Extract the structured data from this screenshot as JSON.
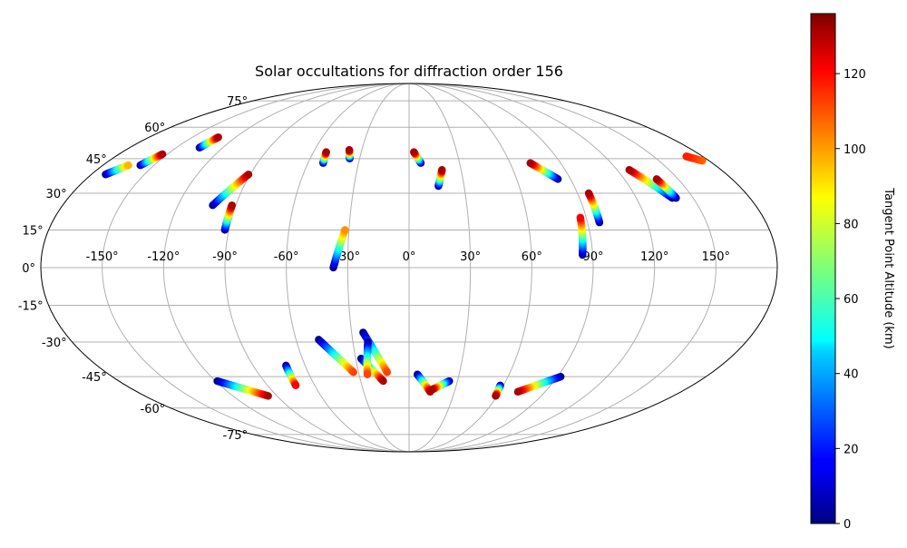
{
  "chart_data": {
    "type": "scatter",
    "projection": "mollweide",
    "title": "Solar occultations for diffraction order 156",
    "xlabel": "",
    "ylabel": "",
    "lon_ticks": [
      -150,
      -120,
      -90,
      -60,
      -30,
      0,
      30,
      60,
      90,
      120,
      150
    ],
    "lat_ticks": [
      -75,
      -60,
      -45,
      -30,
      -15,
      0,
      15,
      30,
      45,
      60,
      75
    ],
    "lon_tick_labels": [
      "-150°",
      "-120°",
      "-90°",
      "-60°",
      "-30°",
      "0°",
      "30°",
      "60°",
      "90°",
      "120°",
      "150°"
    ],
    "lat_tick_labels": [
      "-75°",
      "-60°",
      "-45°",
      "-30°",
      "-15°",
      "0°",
      "15°",
      "30°",
      "45°",
      "60°",
      "75°"
    ],
    "grid": true,
    "colormap": "jet",
    "colorbar": {
      "label": "Tangent Point Altitude (km)",
      "range": [
        0,
        136
      ],
      "ticks": [
        0,
        20,
        40,
        60,
        80,
        100,
        120
      ],
      "tick_labels": [
        "0",
        "20",
        "40",
        "60",
        "80",
        "100",
        "120"
      ]
    },
    "tracks": [
      {
        "lon0": -172,
        "lat0": 38,
        "lon1": -165,
        "lat1": 42,
        "alt0": 0,
        "alt1": 95
      },
      {
        "lon0": -158,
        "lat0": 42,
        "lon1": -153,
        "lat1": 47,
        "alt0": 0,
        "alt1": 130
      },
      {
        "lon0": -135,
        "lat0": 50,
        "lon1": -132,
        "lat1": 55,
        "alt0": 0,
        "alt1": 130
      },
      {
        "lon0": -102,
        "lat0": 25,
        "lon1": -91,
        "lat1": 38,
        "alt0": 0,
        "alt1": 130
      },
      {
        "lon0": -92,
        "lat0": 15,
        "lon1": -92,
        "lat1": 25,
        "alt0": 0,
        "alt1": 130
      },
      {
        "lon0": -51,
        "lat0": 43,
        "lon1": -52,
        "lat1": 48,
        "alt0": 0,
        "alt1": 130
      },
      {
        "lon0": -36,
        "lat0": 45,
        "lon1": -38,
        "lat1": 49,
        "alt0": 0,
        "alt1": 130
      },
      {
        "lon0": -37,
        "lat0": 0,
        "lon1": -32,
        "lat1": 15,
        "alt0": 0,
        "alt1": 100
      },
      {
        "lon0": 7,
        "lat0": 43,
        "lon1": 3,
        "lat1": 48,
        "alt0": 0,
        "alt1": 130
      },
      {
        "lon0": 16,
        "lat0": 33,
        "lon1": 19,
        "lat1": 40,
        "alt0": 0,
        "alt1": 130
      },
      {
        "lon0": 83,
        "lat0": 36,
        "lon1": 72,
        "lat1": 43,
        "alt0": 0,
        "alt1": 130
      },
      {
        "lon0": 96,
        "lat0": 18,
        "lon1": 96,
        "lat1": 30,
        "alt0": 0,
        "alt1": 130
      },
      {
        "lon0": 85,
        "lat0": 5,
        "lon1": 87,
        "lat1": 20,
        "alt0": 0,
        "alt1": 120
      },
      {
        "lon0": 139,
        "lat0": 28,
        "lon1": 127,
        "lat1": 40,
        "alt0": 0,
        "alt1": 130
      },
      {
        "lon0": 141,
        "lat0": 28,
        "lon1": 138,
        "lat1": 36,
        "alt0": 0,
        "alt1": 130
      },
      {
        "lon0": 176,
        "lat0": 44,
        "lon1": 170,
        "lat1": 46,
        "alt0": 105,
        "alt1": 115
      },
      {
        "lon0": -119,
        "lat0": -47,
        "lon1": -96,
        "lat1": -54,
        "alt0": 0,
        "alt1": 130
      },
      {
        "lon0": -71,
        "lat0": -40,
        "lon1": -72,
        "lat1": -49,
        "alt0": 0,
        "alt1": 120
      },
      {
        "lon0": -48,
        "lat0": -29,
        "lon1": -33,
        "lat1": -43,
        "alt0": 0,
        "alt1": 110
      },
      {
        "lon0": -24,
        "lat0": -26,
        "lon1": -13,
        "lat1": -43,
        "alt0": 0,
        "alt1": 110
      },
      {
        "lon0": -27,
        "lat0": -37,
        "lon1": -16,
        "lat1": -47,
        "alt0": 0,
        "alt1": 130
      },
      {
        "lon0": -22,
        "lat0": -30,
        "lon1": -25,
        "lat1": -44,
        "alt0": 0,
        "alt1": 110
      },
      {
        "lon0": 5,
        "lat0": -44,
        "lon1": 14,
        "lat1": -52,
        "alt0": 0,
        "alt1": 130
      },
      {
        "lon0": 25,
        "lat0": -47,
        "lon1": 15,
        "lat1": -51,
        "alt0": 0,
        "alt1": 130
      },
      {
        "lon0": 58,
        "lat0": -49,
        "lon1": 59,
        "lat1": -54,
        "alt0": 0,
        "alt1": 130
      },
      {
        "lon0": 92,
        "lat0": -45,
        "lon1": 72,
        "lat1": -52,
        "alt0": 0,
        "alt1": 130
      }
    ]
  }
}
